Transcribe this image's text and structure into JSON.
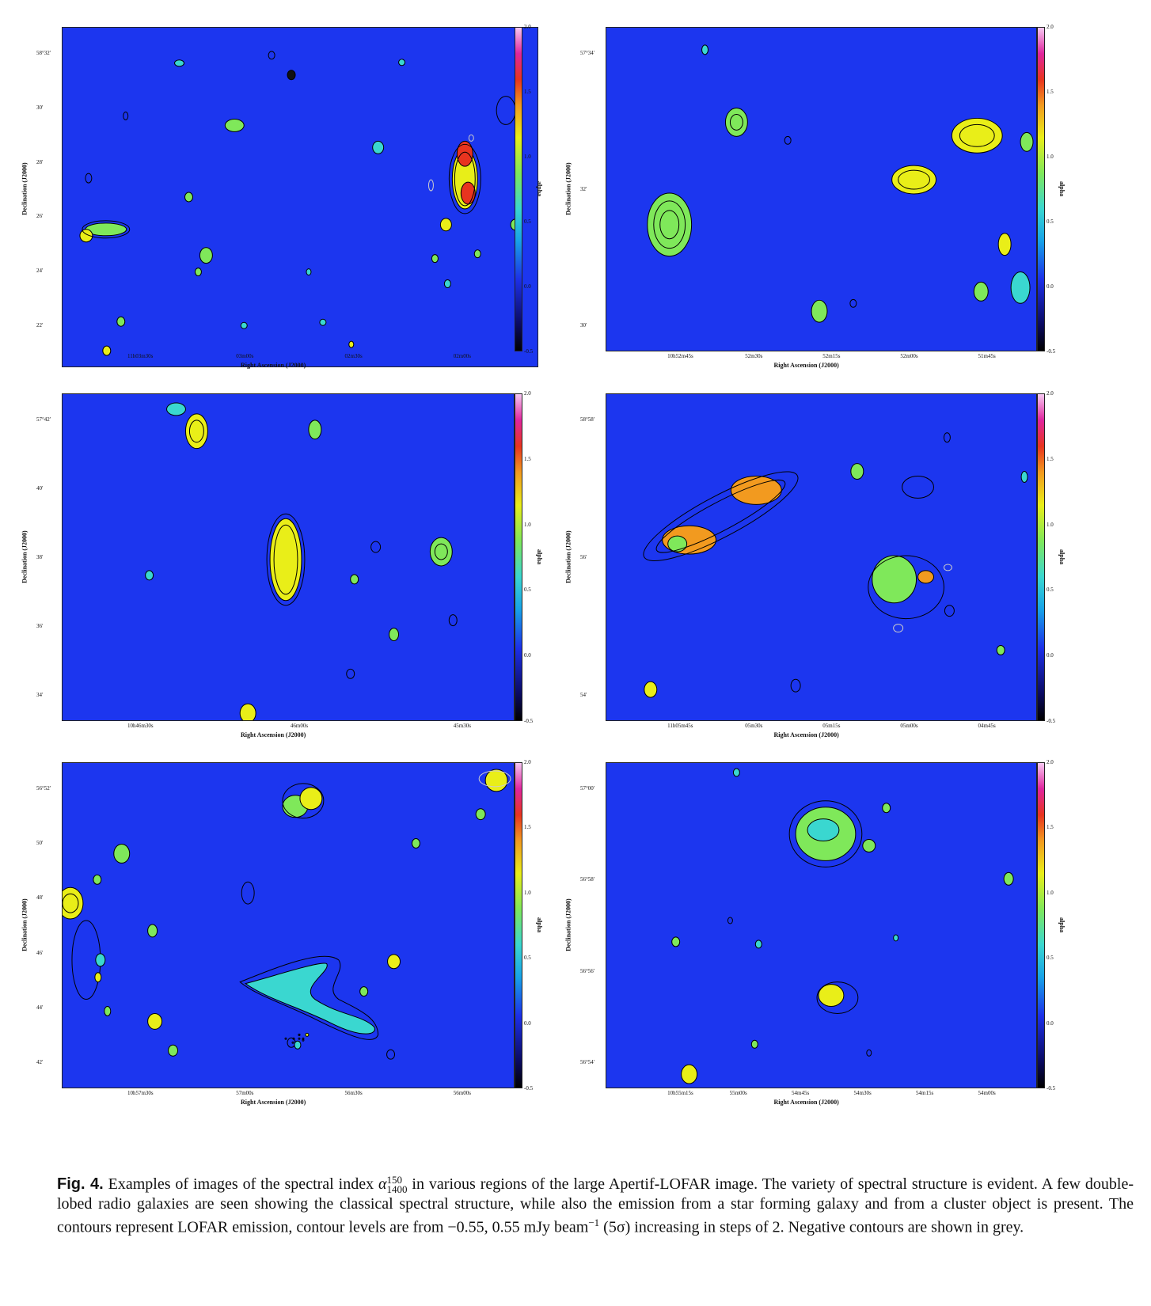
{
  "colorbar": {
    "title": "alpha",
    "ticks": [
      "2.0",
      "1.5",
      "1.0",
      "0.5",
      "0.0",
      "-0.5"
    ]
  },
  "axis_labels": {
    "x": "Right Ascension (J2000)",
    "y": "Declination (J2000)"
  },
  "panels": [
    {
      "ra_ticks": [
        "11h03m30s",
        "03m00s",
        "02m30s",
        "02m00s"
      ],
      "dec_ticks": [
        "58°32′",
        "30′",
        "28′",
        "26′",
        "24′",
        "22′"
      ]
    },
    {
      "ra_ticks": [
        "10h52m45s",
        "52m30s",
        "52m15s",
        "52m00s",
        "51m45s"
      ],
      "dec_ticks": [
        "57°34′",
        "32′",
        "30′"
      ]
    },
    {
      "ra_ticks": [
        "10h46m30s",
        "46m00s",
        "45m30s"
      ],
      "dec_ticks": [
        "57°42′",
        "40′",
        "38′",
        "36′",
        "34′"
      ]
    },
    {
      "ra_ticks": [
        "11h05m45s",
        "05m30s",
        "05m15s",
        "05m00s",
        "04m45s"
      ],
      "dec_ticks": [
        "58°58′",
        "56′",
        "54′"
      ]
    },
    {
      "ra_ticks": [
        "10h57m30s",
        "57m00s",
        "56m30s",
        "56m00s"
      ],
      "dec_ticks": [
        "56°52′",
        "50′",
        "48′",
        "46′",
        "44′",
        "42′"
      ]
    },
    {
      "ra_ticks": [
        "10h55m15s",
        "55m00s",
        "54m45s",
        "54m30s",
        "54m15s",
        "54m00s"
      ],
      "dec_ticks": [
        "57°00′",
        "56°58′",
        "56°56′",
        "56°54′"
      ]
    }
  ],
  "caption": {
    "label": "Fig. 4.",
    "text_1": " Examples of images of the spectral index ",
    "symbol": "α",
    "sup": "150",
    "sub": "1400",
    "text_2": " in various regions of the large Apertif-LOFAR image. The variety of spectral structure is evident. A few double-lobed radio galaxies are seen showing the classical spectral structure, while also the emission from a star forming galaxy and from a cluster object is present. The contours represent LOFAR emission, contour levels are from −0.55, 0.55 mJy beam",
    "beam_exp": "−1",
    "text_3": " (5σ) increasing in steps of 2. Negative contours are shown in grey."
  }
}
